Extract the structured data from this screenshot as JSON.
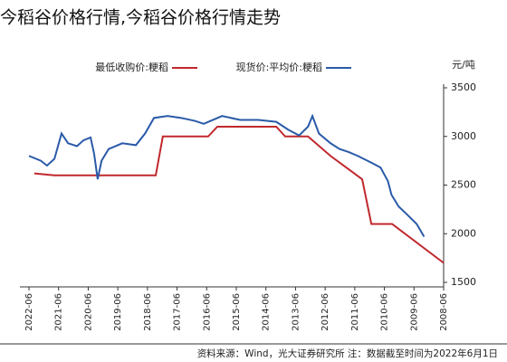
{
  "caption": "今稻谷价格行情,今稻谷价格行情走势",
  "chart_data": {
    "type": "line",
    "y_label": "元/吨",
    "source": "资料来源：Wind，光大证券研究所 注：数据截至时间为2022年6月1日",
    "series": [
      {
        "name": "最低收购价:粳稻",
        "color": "#c0282d",
        "x": [
          2022.24,
          2021.56,
          2018.14,
          2017.9,
          2016.37,
          2016.06,
          2014.07,
          2013.77,
          2013.0,
          2012.24,
          2011.17,
          2010.86,
          2010.16,
          2008.42
        ],
        "values": [
          2620,
          2600,
          2600,
          3000,
          3000,
          3100,
          3100,
          3000,
          3000,
          2800,
          2560,
          2100,
          2100,
          1700
        ]
      },
      {
        "name": "现货价:平均价:粳稻",
        "color": "#2a5aa8",
        "x": [
          2022.42,
          2022.02,
          2021.81,
          2021.56,
          2021.32,
          2021.1,
          2020.8,
          2020.58,
          2020.34,
          2020.22,
          2020.1,
          2019.97,
          2019.73,
          2019.27,
          2018.81,
          2018.5,
          2018.2,
          2017.74,
          2017.28,
          2016.82,
          2016.52,
          2015.9,
          2015.29,
          2014.68,
          2014.07,
          2013.67,
          2013.3,
          2013.0,
          2012.85,
          2012.63,
          2012.24,
          2011.93,
          2011.63,
          2011.32,
          2010.86,
          2010.55,
          2010.3,
          2010.18,
          2009.94,
          2009.63,
          2009.33,
          2009.08
        ],
        "values": [
          2800,
          2750,
          2700,
          2770,
          3030,
          2930,
          2900,
          2960,
          2990,
          2820,
          2560,
          2750,
          2870,
          2930,
          2910,
          3030,
          3190,
          3210,
          3190,
          3160,
          3130,
          3210,
          3170,
          3170,
          3150,
          3070,
          3010,
          3100,
          3210,
          3030,
          2930,
          2870,
          2840,
          2800,
          2730,
          2680,
          2540,
          2400,
          2280,
          2190,
          2100,
          1970
        ]
      }
    ],
    "xlim": [
      2022.42,
      2008.42
    ],
    "xticks": [
      {
        "value": 2022.42,
        "label": "2022-06"
      },
      {
        "value": 2021.42,
        "label": "2021-06"
      },
      {
        "value": 2020.42,
        "label": "2020-06"
      },
      {
        "value": 2019.42,
        "label": "2019-06"
      },
      {
        "value": 2018.42,
        "label": "2018-06"
      },
      {
        "value": 2017.42,
        "label": "2017-06"
      },
      {
        "value": 2016.42,
        "label": "2016-06"
      },
      {
        "value": 2015.42,
        "label": "2015-06"
      },
      {
        "value": 2014.42,
        "label": "2014-06"
      },
      {
        "value": 2013.42,
        "label": "2013-06"
      },
      {
        "value": 2012.42,
        "label": "2012-06"
      },
      {
        "value": 2011.42,
        "label": "2011-06"
      },
      {
        "value": 2010.42,
        "label": "2010-06"
      },
      {
        "value": 2009.42,
        "label": "2009-06"
      },
      {
        "value": 2008.42,
        "label": "2008-06"
      }
    ],
    "ylim": [
      1500,
      3500
    ],
    "yticks": [
      1500,
      2000,
      2500,
      3000,
      3500
    ]
  }
}
